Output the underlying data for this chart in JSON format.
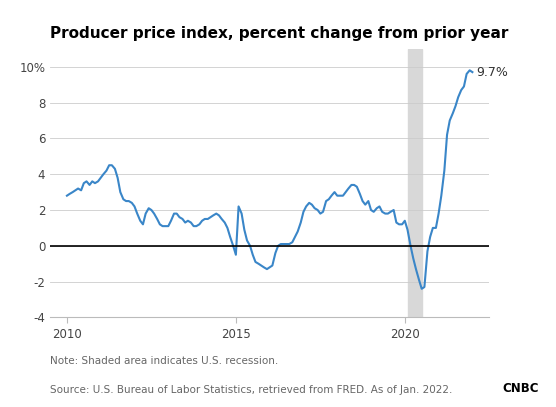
{
  "title": "Producer price index, percent change from prior year",
  "note": "Note: Shaded area indicates U.S. recession.",
  "source": "Source: U.S. Bureau of Labor Statistics, retrieved from FRED. As of Jan. 2022.",
  "end_label": "9.7%",
  "line_color": "#3a86c8",
  "recession_color": "#d8d8d8",
  "recession_start": 2020.08,
  "recession_end": 2020.5,
  "ylim": [
    -4,
    11.0
  ],
  "yticks": [
    -4,
    -2,
    0,
    2,
    4,
    6,
    8,
    10
  ],
  "ytick_labels": [
    "-4",
    "-2",
    "0",
    "2",
    "4",
    "6",
    "8",
    "10%"
  ],
  "xlim": [
    2009.5,
    2022.5
  ],
  "xticks": [
    2010,
    2015,
    2020
  ],
  "background_color": "#ffffff",
  "data": [
    [
      2010.0,
      2.8
    ],
    [
      2010.08,
      2.9
    ],
    [
      2010.17,
      3.0
    ],
    [
      2010.25,
      3.1
    ],
    [
      2010.33,
      3.2
    ],
    [
      2010.42,
      3.1
    ],
    [
      2010.5,
      3.5
    ],
    [
      2010.58,
      3.6
    ],
    [
      2010.67,
      3.4
    ],
    [
      2010.75,
      3.6
    ],
    [
      2010.83,
      3.5
    ],
    [
      2010.92,
      3.6
    ],
    [
      2011.0,
      3.8
    ],
    [
      2011.08,
      4.0
    ],
    [
      2011.17,
      4.2
    ],
    [
      2011.25,
      4.5
    ],
    [
      2011.33,
      4.5
    ],
    [
      2011.42,
      4.3
    ],
    [
      2011.5,
      3.8
    ],
    [
      2011.58,
      3.0
    ],
    [
      2011.67,
      2.6
    ],
    [
      2011.75,
      2.5
    ],
    [
      2011.83,
      2.5
    ],
    [
      2011.92,
      2.4
    ],
    [
      2012.0,
      2.2
    ],
    [
      2012.08,
      1.8
    ],
    [
      2012.17,
      1.4
    ],
    [
      2012.25,
      1.2
    ],
    [
      2012.33,
      1.8
    ],
    [
      2012.42,
      2.1
    ],
    [
      2012.5,
      2.0
    ],
    [
      2012.58,
      1.8
    ],
    [
      2012.67,
      1.5
    ],
    [
      2012.75,
      1.2
    ],
    [
      2012.83,
      1.1
    ],
    [
      2012.92,
      1.1
    ],
    [
      2013.0,
      1.1
    ],
    [
      2013.08,
      1.4
    ],
    [
      2013.17,
      1.8
    ],
    [
      2013.25,
      1.8
    ],
    [
      2013.33,
      1.6
    ],
    [
      2013.42,
      1.5
    ],
    [
      2013.5,
      1.3
    ],
    [
      2013.58,
      1.4
    ],
    [
      2013.67,
      1.3
    ],
    [
      2013.75,
      1.1
    ],
    [
      2013.83,
      1.1
    ],
    [
      2013.92,
      1.2
    ],
    [
      2014.0,
      1.4
    ],
    [
      2014.08,
      1.5
    ],
    [
      2014.17,
      1.5
    ],
    [
      2014.25,
      1.6
    ],
    [
      2014.33,
      1.7
    ],
    [
      2014.42,
      1.8
    ],
    [
      2014.5,
      1.7
    ],
    [
      2014.58,
      1.5
    ],
    [
      2014.67,
      1.3
    ],
    [
      2014.75,
      1.0
    ],
    [
      2014.83,
      0.5
    ],
    [
      2014.92,
      0.0
    ],
    [
      2015.0,
      -0.5
    ],
    [
      2015.08,
      2.2
    ],
    [
      2015.17,
      1.8
    ],
    [
      2015.25,
      0.9
    ],
    [
      2015.33,
      0.3
    ],
    [
      2015.42,
      0.0
    ],
    [
      2015.5,
      -0.5
    ],
    [
      2015.58,
      -0.9
    ],
    [
      2015.67,
      -1.0
    ],
    [
      2015.75,
      -1.1
    ],
    [
      2015.83,
      -1.2
    ],
    [
      2015.92,
      -1.3
    ],
    [
      2016.0,
      -1.2
    ],
    [
      2016.08,
      -1.1
    ],
    [
      2016.17,
      -0.4
    ],
    [
      2016.25,
      0.0
    ],
    [
      2016.33,
      0.1
    ],
    [
      2016.42,
      0.1
    ],
    [
      2016.5,
      0.1
    ],
    [
      2016.58,
      0.1
    ],
    [
      2016.67,
      0.2
    ],
    [
      2016.75,
      0.5
    ],
    [
      2016.83,
      0.8
    ],
    [
      2016.92,
      1.3
    ],
    [
      2017.0,
      1.9
    ],
    [
      2017.08,
      2.2
    ],
    [
      2017.17,
      2.4
    ],
    [
      2017.25,
      2.3
    ],
    [
      2017.33,
      2.1
    ],
    [
      2017.42,
      2.0
    ],
    [
      2017.5,
      1.8
    ],
    [
      2017.58,
      1.9
    ],
    [
      2017.67,
      2.5
    ],
    [
      2017.75,
      2.6
    ],
    [
      2017.83,
      2.8
    ],
    [
      2017.92,
      3.0
    ],
    [
      2018.0,
      2.8
    ],
    [
      2018.08,
      2.8
    ],
    [
      2018.17,
      2.8
    ],
    [
      2018.25,
      3.0
    ],
    [
      2018.33,
      3.2
    ],
    [
      2018.42,
      3.4
    ],
    [
      2018.5,
      3.4
    ],
    [
      2018.58,
      3.3
    ],
    [
      2018.67,
      2.9
    ],
    [
      2018.75,
      2.5
    ],
    [
      2018.83,
      2.3
    ],
    [
      2018.92,
      2.5
    ],
    [
      2019.0,
      2.0
    ],
    [
      2019.08,
      1.9
    ],
    [
      2019.17,
      2.1
    ],
    [
      2019.25,
      2.2
    ],
    [
      2019.33,
      1.9
    ],
    [
      2019.42,
      1.8
    ],
    [
      2019.5,
      1.8
    ],
    [
      2019.58,
      1.9
    ],
    [
      2019.67,
      2.0
    ],
    [
      2019.75,
      1.3
    ],
    [
      2019.83,
      1.2
    ],
    [
      2019.92,
      1.2
    ],
    [
      2020.0,
      1.4
    ],
    [
      2020.08,
      0.9
    ],
    [
      2020.17,
      0.0
    ],
    [
      2020.25,
      -0.7
    ],
    [
      2020.33,
      -1.3
    ],
    [
      2020.42,
      -1.9
    ],
    [
      2020.5,
      -2.4
    ],
    [
      2020.58,
      -2.3
    ],
    [
      2020.67,
      -0.3
    ],
    [
      2020.75,
      0.5
    ],
    [
      2020.83,
      1.0
    ],
    [
      2020.92,
      1.0
    ],
    [
      2021.0,
      1.8
    ],
    [
      2021.08,
      2.8
    ],
    [
      2021.17,
      4.2
    ],
    [
      2021.25,
      6.2
    ],
    [
      2021.33,
      7.0
    ],
    [
      2021.42,
      7.4
    ],
    [
      2021.5,
      7.8
    ],
    [
      2021.58,
      8.3
    ],
    [
      2021.67,
      8.7
    ],
    [
      2021.75,
      8.9
    ],
    [
      2021.83,
      9.6
    ],
    [
      2021.92,
      9.8
    ],
    [
      2022.0,
      9.7
    ]
  ]
}
